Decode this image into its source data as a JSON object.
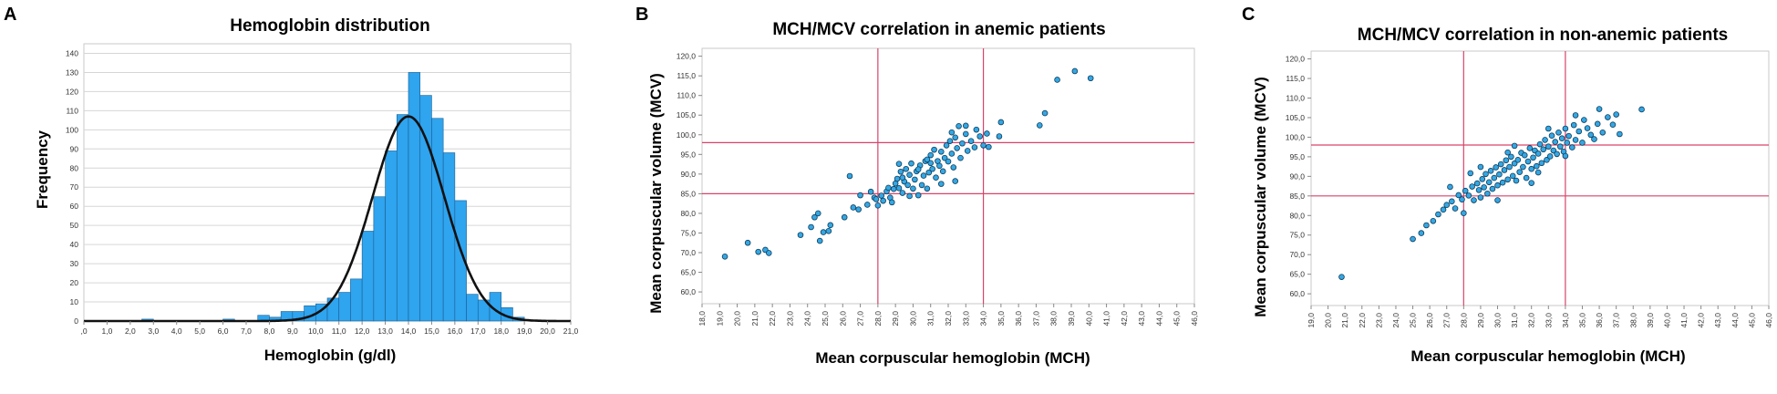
{
  "chart_data": [
    {
      "type": "bar",
      "panel_label": "A",
      "title": "Hemoglobin distribution",
      "xlabel": "Hemoglobin (g/dl)",
      "ylabel": "Frequency",
      "xlim": [
        0,
        21
      ],
      "ylim": [
        0,
        145
      ],
      "xtick_labels": [
        ",0",
        "1,0",
        "2,0",
        "3,0",
        "4,0",
        "5,0",
        "6,0",
        "7,0",
        "8,0",
        "9,0",
        "10,0",
        "11,0",
        "12,0",
        "13,0",
        "14,0",
        "15,0",
        "16,0",
        "17,0",
        "18,0",
        "19,0",
        "20,0",
        "21,0"
      ],
      "ytick_labels": [
        "0",
        "10",
        "20",
        "30",
        "40",
        "50",
        "60",
        "70",
        "80",
        "90",
        "100",
        "110",
        "120",
        "130",
        "140"
      ],
      "bin_width": 0.5,
      "bins": [
        {
          "x0": 2.5,
          "value": 1
        },
        {
          "x0": 6.0,
          "value": 1
        },
        {
          "x0": 7.5,
          "value": 3
        },
        {
          "x0": 8.0,
          "value": 2
        },
        {
          "x0": 8.5,
          "value": 5
        },
        {
          "x0": 9.0,
          "value": 5
        },
        {
          "x0": 9.5,
          "value": 8
        },
        {
          "x0": 10.0,
          "value": 9
        },
        {
          "x0": 10.5,
          "value": 12
        },
        {
          "x0": 11.0,
          "value": 15
        },
        {
          "x0": 11.5,
          "value": 22
        },
        {
          "x0": 12.0,
          "value": 47
        },
        {
          "x0": 12.5,
          "value": 65
        },
        {
          "x0": 13.0,
          "value": 89
        },
        {
          "x0": 13.5,
          "value": 108
        },
        {
          "x0": 14.0,
          "value": 130
        },
        {
          "x0": 14.5,
          "value": 118
        },
        {
          "x0": 15.0,
          "value": 106
        },
        {
          "x0": 15.5,
          "value": 88
        },
        {
          "x0": 16.0,
          "value": 63
        },
        {
          "x0": 16.5,
          "value": 14
        },
        {
          "x0": 17.0,
          "value": 11
        },
        {
          "x0": 17.5,
          "value": 15
        },
        {
          "x0": 18.0,
          "value": 7
        },
        {
          "x0": 18.5,
          "value": 2
        }
      ],
      "normal_curve": {
        "mean": 14.0,
        "sd": 1.55,
        "peak": 107
      }
    },
    {
      "type": "scatter",
      "panel_label": "B",
      "title": "MCH/MCV correlation in anemic patients",
      "xlabel": "Mean corpuscular hemoglobin (MCH)",
      "ylabel": "Mean corpuscular volume (MCV)",
      "xlim": [
        18,
        46
      ],
      "ylim": [
        57,
        122
      ],
      "xtick_labels": [
        "18,0",
        "19,0",
        "20,0",
        "21,0",
        "22,0",
        "23,0",
        "24,0",
        "25,0",
        "26,0",
        "27,0",
        "28,0",
        "29,0",
        "30,0",
        "31,0",
        "32,0",
        "33,0",
        "34,0",
        "35,0",
        "36,0",
        "37,0",
        "38,0",
        "39,0",
        "40,0",
        "41,0",
        "42,0",
        "43,0",
        "44,0",
        "45,0",
        "46,0"
      ],
      "ytick_labels": [
        "60,0",
        "65,0",
        "70,0",
        "75,0",
        "80,0",
        "85,0",
        "90,0",
        "95,0",
        "100,0",
        "105,0",
        "110,0",
        "115,0",
        "120,0"
      ],
      "reference_lines": {
        "x": [
          28,
          34
        ],
        "y": [
          85,
          98
        ]
      },
      "points": [
        [
          19.3,
          69
        ],
        [
          20.6,
          72.5
        ],
        [
          21.2,
          70.2
        ],
        [
          21.6,
          70.7
        ],
        [
          21.8,
          69.9
        ],
        [
          23.6,
          74.5
        ],
        [
          24.2,
          76.5
        ],
        [
          24.4,
          79
        ],
        [
          24.7,
          73
        ],
        [
          24.9,
          75.2
        ],
        [
          25.2,
          75.5
        ],
        [
          25.3,
          77
        ],
        [
          24.6,
          80
        ],
        [
          26.1,
          79
        ],
        [
          26.6,
          81.5
        ],
        [
          26.9,
          81
        ],
        [
          27.0,
          84.6
        ],
        [
          27.4,
          82.2
        ],
        [
          27.6,
          85.5
        ],
        [
          27.8,
          84
        ],
        [
          28.0,
          82
        ],
        [
          28.2,
          84.5
        ],
        [
          28.3,
          83.2
        ],
        [
          28.5,
          85.6
        ],
        [
          28.7,
          84
        ],
        [
          28.9,
          86.2
        ],
        [
          29.0,
          87.6
        ],
        [
          29.1,
          88.8
        ],
        [
          29.2,
          86.4
        ],
        [
          29.3,
          90.6
        ],
        [
          29.4,
          85.2
        ],
        [
          29.5,
          88.1
        ],
        [
          29.6,
          91.3
        ],
        [
          29.7,
          87.2
        ],
        [
          29.8,
          89.8
        ],
        [
          29.9,
          92.7
        ],
        [
          30.0,
          86.3
        ],
        [
          30.1,
          88.6
        ],
        [
          30.2,
          90.7
        ],
        [
          30.3,
          84.6
        ],
        [
          30.4,
          92.2
        ],
        [
          30.5,
          87.2
        ],
        [
          30.6,
          89.6
        ],
        [
          30.7,
          93.3
        ],
        [
          30.8,
          86.3
        ],
        [
          30.9,
          90.4
        ],
        [
          31.0,
          94.8
        ],
        [
          31.1,
          91.3
        ],
        [
          31.2,
          96.2
        ],
        [
          31.3,
          89.1
        ],
        [
          31.4,
          93.3
        ],
        [
          31.5,
          92.1
        ],
        [
          31.6,
          95.7
        ],
        [
          31.7,
          90.7
        ],
        [
          31.8,
          94.1
        ],
        [
          31.9,
          97.3
        ],
        [
          32.0,
          93.2
        ],
        [
          32.1,
          98.4
        ],
        [
          32.2,
          95.2
        ],
        [
          32.3,
          91.7
        ],
        [
          32.4,
          99.3
        ],
        [
          32.5,
          96.6
        ],
        [
          32.7,
          94.1
        ],
        [
          32.8,
          97.8
        ],
        [
          33.0,
          100.2
        ],
        [
          33.1,
          95.9
        ],
        [
          33.3,
          98.4
        ],
        [
          33.5,
          96.8
        ],
        [
          33.6,
          101.3
        ],
        [
          33.8,
          99.6
        ],
        [
          34.0,
          97.3
        ],
        [
          29.4,
          89.1
        ],
        [
          30.3,
          91.2
        ],
        [
          31.0,
          92.8
        ],
        [
          32.2,
          100.6
        ],
        [
          32.6,
          102.2
        ],
        [
          28.6,
          86.5
        ],
        [
          27.9,
          83.6
        ],
        [
          29.8,
          84.4
        ],
        [
          26.4,
          89.5
        ],
        [
          32.4,
          88.2
        ],
        [
          31.6,
          87.5
        ],
        [
          33.0,
          102.3
        ],
        [
          30.8,
          93.7
        ],
        [
          29.2,
          92.6
        ],
        [
          28.8,
          82.8
        ],
        [
          34.2,
          100.3
        ],
        [
          34.3,
          96.9
        ],
        [
          35.0,
          103.2
        ],
        [
          34.9,
          99.6
        ],
        [
          37.2,
          102.4
        ],
        [
          37.5,
          105.5
        ],
        [
          38.2,
          114
        ],
        [
          39.2,
          116.2
        ],
        [
          40.1,
          114.4
        ]
      ]
    },
    {
      "type": "scatter",
      "panel_label": "C",
      "title": "MCH/MCV correlation in non-anemic patients",
      "xlabel": "Mean corpuscular hemoglobin (MCH)",
      "ylabel": "Mean corpuscular volume (MCV)",
      "xlim": [
        19,
        46
      ],
      "ylim": [
        57,
        122
      ],
      "xtick_labels": [
        "19,0",
        "20,0",
        "21,0",
        "22,0",
        "23,0",
        "24,0",
        "25,0",
        "26,0",
        "27,0",
        "28,0",
        "29,0",
        "30,0",
        "31,0",
        "32,0",
        "33,0",
        "34,0",
        "35,0",
        "36,0",
        "37,0",
        "38,0",
        "39,0",
        "40,0",
        "41,0",
        "42,0",
        "43,0",
        "44,0",
        "45,0",
        "46,0"
      ],
      "ytick_labels": [
        "60,0",
        "65,0",
        "70,0",
        "75,0",
        "80,0",
        "85,0",
        "90,0",
        "95,0",
        "100,0",
        "105,0",
        "110,0",
        "115,0",
        "120,0"
      ],
      "reference_lines": {
        "x": [
          28,
          34
        ],
        "y": [
          85,
          98
        ]
      },
      "points": [
        [
          20.8,
          64.3
        ],
        [
          25.0,
          74
        ],
        [
          25.5,
          75.5
        ],
        [
          25.8,
          77.5
        ],
        [
          26.2,
          78.6
        ],
        [
          26.5,
          80.3
        ],
        [
          26.8,
          81.5
        ],
        [
          27.0,
          82.7
        ],
        [
          27.3,
          83.6
        ],
        [
          27.5,
          81.8
        ],
        [
          27.7,
          85.2
        ],
        [
          27.9,
          84.1
        ],
        [
          28.1,
          86.3
        ],
        [
          28.3,
          85.1
        ],
        [
          28.5,
          87.4
        ],
        [
          28.6,
          83.9
        ],
        [
          28.8,
          88.2
        ],
        [
          28.9,
          86.5
        ],
        [
          29.0,
          84.6
        ],
        [
          29.1,
          89.3
        ],
        [
          29.2,
          87.2
        ],
        [
          29.3,
          90.6
        ],
        [
          29.4,
          85.6
        ],
        [
          29.5,
          88.5
        ],
        [
          29.6,
          91.4
        ],
        [
          29.7,
          86.8
        ],
        [
          29.8,
          89.6
        ],
        [
          29.9,
          92.3
        ],
        [
          30.0,
          87.7
        ],
        [
          30.1,
          90.5
        ],
        [
          30.2,
          93.1
        ],
        [
          30.3,
          88.4
        ],
        [
          30.4,
          91.6
        ],
        [
          30.5,
          94.1
        ],
        [
          30.6,
          89.2
        ],
        [
          30.7,
          92.4
        ],
        [
          30.8,
          95.0
        ],
        [
          30.9,
          90.1
        ],
        [
          31.0,
          93.3
        ],
        [
          31.1,
          88.9
        ],
        [
          31.2,
          94.2
        ],
        [
          31.3,
          91.1
        ],
        [
          31.4,
          96.0
        ],
        [
          31.5,
          92.4
        ],
        [
          31.6,
          95.4
        ],
        [
          31.7,
          89.6
        ],
        [
          31.8,
          93.8
        ],
        [
          31.9,
          97.2
        ],
        [
          32.0,
          91.9
        ],
        [
          32.1,
          94.8
        ],
        [
          32.2,
          96.6
        ],
        [
          32.3,
          92.6
        ],
        [
          32.4,
          95.8
        ],
        [
          32.5,
          98.2
        ],
        [
          32.6,
          93.4
        ],
        [
          32.7,
          96.9
        ],
        [
          32.8,
          99.3
        ],
        [
          32.9,
          94.2
        ],
        [
          33.0,
          97.6
        ],
        [
          33.1,
          95.1
        ],
        [
          33.2,
          100.4
        ],
        [
          33.3,
          96.6
        ],
        [
          33.4,
          98.8
        ],
        [
          33.5,
          95.7
        ],
        [
          33.6,
          101.2
        ],
        [
          33.7,
          97.6
        ],
        [
          33.8,
          99.7
        ],
        [
          33.9,
          96.3
        ],
        [
          34.0,
          102.2
        ],
        [
          34.1,
          98.6
        ],
        [
          34.2,
          100.3
        ],
        [
          34.4,
          97.4
        ],
        [
          34.5,
          103.1
        ],
        [
          34.6,
          99.3
        ],
        [
          34.8,
          101.5
        ],
        [
          35.0,
          98.6
        ],
        [
          35.1,
          104.4
        ],
        [
          35.3,
          102.3
        ],
        [
          35.5,
          100.6
        ],
        [
          35.7,
          99.5
        ],
        [
          35.9,
          103.4
        ],
        [
          36.2,
          101.2
        ],
        [
          36.5,
          105.1
        ],
        [
          36.8,
          103.2
        ],
        [
          37.0,
          105.8
        ],
        [
          37.2,
          100.8
        ],
        [
          38.5,
          107.1
        ],
        [
          28.0,
          80.6
        ],
        [
          29.0,
          92.4
        ],
        [
          30.0,
          83.9
        ],
        [
          31.0,
          97.8
        ],
        [
          32.0,
          88.3
        ],
        [
          33.0,
          102.2
        ],
        [
          34.0,
          95.2
        ],
        [
          28.4,
          90.8
        ],
        [
          30.6,
          96.1
        ],
        [
          32.4,
          91.0
        ],
        [
          27.2,
          87.3
        ],
        [
          34.6,
          105.6
        ],
        [
          36.0,
          107.2
        ]
      ]
    }
  ]
}
